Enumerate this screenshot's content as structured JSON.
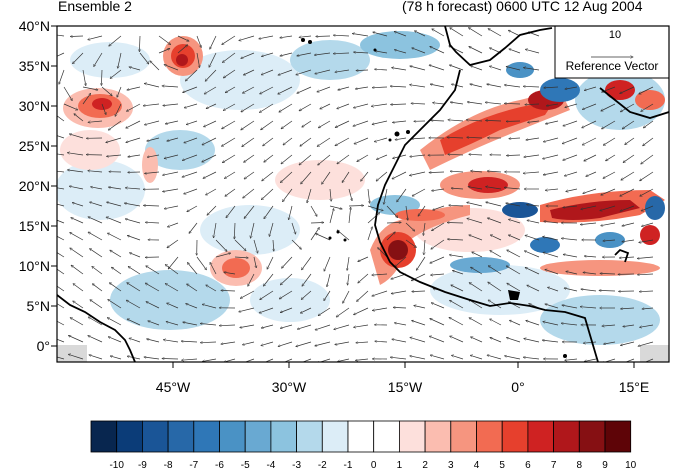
{
  "figure": {
    "title_left": "Ensemble 2",
    "title_right": "(78 h forecast) 0600 UTC 12 Aug 2004"
  },
  "map": {
    "lat_labels": [
      "40°N",
      "35°N",
      "30°N",
      "25°N",
      "20°N",
      "15°N",
      "10°N",
      "5°N",
      "0°"
    ],
    "lon_labels": [
      "45°W",
      "30°W",
      "15°W",
      "0°",
      "15°E"
    ],
    "extent": {
      "lon_min": -60,
      "lon_max": 20,
      "lat_min": 0,
      "lat_max": 40
    }
  },
  "reference_vector": {
    "magnitude_label": "10",
    "caption": "Reference Vector"
  },
  "colorbar": {
    "tick_labels": [
      "-10",
      "-9",
      "-8",
      "-7",
      "-6",
      "-5",
      "-4",
      "-3",
      "-2",
      "-1",
      "0",
      "1",
      "2",
      "3",
      "4",
      "5",
      "6",
      "7",
      "8",
      "9",
      "10"
    ],
    "colors": [
      "#08264f",
      "#0b3c78",
      "#1a5597",
      "#2768a8",
      "#2f77b7",
      "#4a92c5",
      "#69a9d2",
      "#8cc3df",
      "#b4d9eb",
      "#dcedf7",
      "#ffffff",
      "#ffffff",
      "#fde0dc",
      "#fbbdb0",
      "#f6957f",
      "#f26b52",
      "#e6402d",
      "#cf2222",
      "#b0171b",
      "#861013",
      "#5e0407"
    ]
  }
}
